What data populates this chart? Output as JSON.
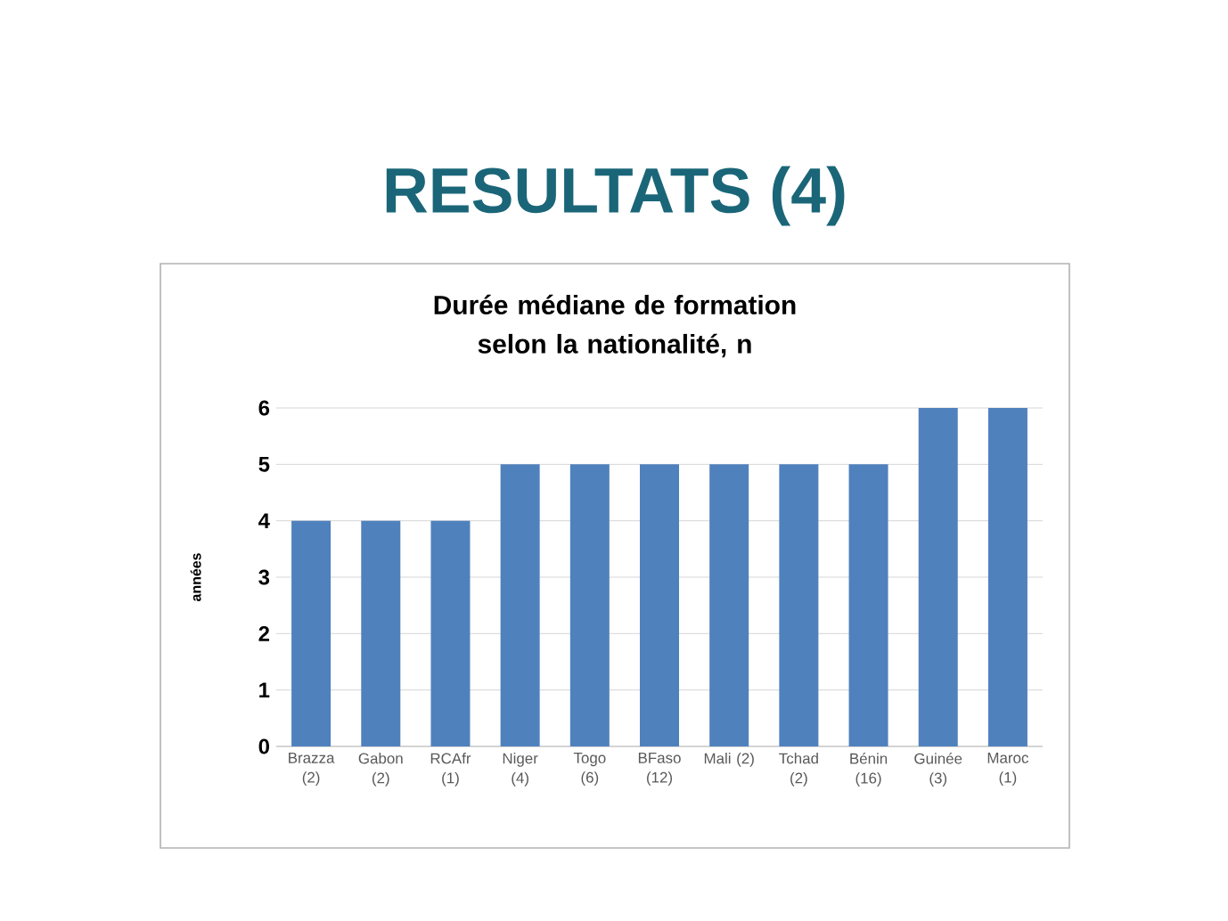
{
  "chart_data": {
    "type": "bar",
    "title": "RESULTATS (4)",
    "subtitle": "Durée médiane de formation selon la nationalité,  n",
    "ylabel": "années",
    "categories": [
      "Brazza (2)",
      "Gabon (2)",
      "RCAfr (1)",
      "Niger (4)",
      "Togo (6)",
      "BFaso (12)",
      "Mali (2)",
      "Tchad (2)",
      "Bénin (16)",
      "Guinée (3)",
      "Maroc (1)"
    ],
    "values": [
      4,
      4,
      4,
      5,
      5,
      5,
      5,
      5,
      5,
      6,
      6
    ],
    "color": "#4f81bd",
    "ylim": [
      0,
      6
    ],
    "yticks": [
      0,
      1,
      2,
      3,
      4,
      5,
      6
    ],
    "grid": "y"
  }
}
